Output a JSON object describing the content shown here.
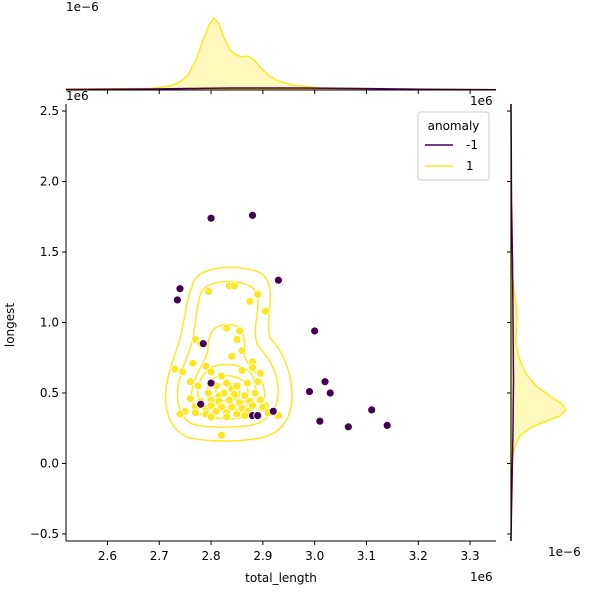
{
  "chart_data": {
    "type": "scatter",
    "xlabel": "total_length",
    "ylabel": "longest",
    "x_offset_label": "1e6",
    "y_offset_label": "1e6",
    "top_marginal_offset_label": "1e−6",
    "right_marginal_offset_label": "1e−6",
    "xlim": [
      2.52,
      3.35
    ],
    "ylim": [
      -0.55,
      2.55
    ],
    "x_ticks": [
      2.6,
      2.7,
      2.8,
      2.9,
      3.0,
      3.1,
      3.2,
      3.3
    ],
    "x_tick_labels": [
      "2.6",
      "2.7",
      "2.8",
      "2.9",
      "3.0",
      "3.1",
      "3.2",
      "3.3"
    ],
    "y_ticks": [
      -0.5,
      0.0,
      0.5,
      1.0,
      1.5,
      2.0,
      2.5
    ],
    "y_tick_labels": [
      "−0.5",
      "0.0",
      "0.5",
      "1.0",
      "1.5",
      "2.0",
      "2.5"
    ],
    "grid": false,
    "legend": {
      "title": "anomaly",
      "placement": "top-right",
      "entries": [
        {
          "label": "-1",
          "color": "#440154"
        },
        {
          "label": "1",
          "color": "#fde725"
        }
      ]
    },
    "series": [
      {
        "name": "-1",
        "color": "#440154",
        "points": [
          [
            2.8,
            1.74
          ],
          [
            2.88,
            1.76
          ],
          [
            2.74,
            1.24
          ],
          [
            2.735,
            1.16
          ],
          [
            2.93,
            1.3
          ],
          [
            3.0,
            0.94
          ],
          [
            2.785,
            0.85
          ],
          [
            2.8,
            0.57
          ],
          [
            2.99,
            0.51
          ],
          [
            3.02,
            0.58
          ],
          [
            3.03,
            0.5
          ],
          [
            2.78,
            0.42
          ],
          [
            2.88,
            0.34
          ],
          [
            2.89,
            0.34
          ],
          [
            2.92,
            0.37
          ],
          [
            3.01,
            0.3
          ],
          [
            3.065,
            0.26
          ],
          [
            3.11,
            0.38
          ],
          [
            3.14,
            0.27
          ]
        ]
      },
      {
        "name": "1",
        "color": "#fde725",
        "points": [
          [
            2.795,
            1.22
          ],
          [
            2.835,
            1.26
          ],
          [
            2.845,
            1.26
          ],
          [
            2.89,
            1.2
          ],
          [
            2.875,
            1.15
          ],
          [
            2.905,
            1.08
          ],
          [
            2.83,
            0.96
          ],
          [
            2.855,
            0.94
          ],
          [
            2.77,
            0.88
          ],
          [
            2.78,
            0.85
          ],
          [
            2.85,
            0.88
          ],
          [
            2.86,
            0.8
          ],
          [
            2.88,
            0.72
          ],
          [
            2.84,
            0.76
          ],
          [
            2.73,
            0.67
          ],
          [
            2.745,
            0.65
          ],
          [
            2.765,
            0.71
          ],
          [
            2.79,
            0.69
          ],
          [
            2.8,
            0.65
          ],
          [
            2.82,
            0.62
          ],
          [
            2.86,
            0.66
          ],
          [
            2.88,
            0.68
          ],
          [
            2.895,
            0.64
          ],
          [
            2.76,
            0.58
          ],
          [
            2.775,
            0.55
          ],
          [
            2.81,
            0.55
          ],
          [
            2.83,
            0.57
          ],
          [
            2.84,
            0.53
          ],
          [
            2.85,
            0.55
          ],
          [
            2.87,
            0.57
          ],
          [
            2.89,
            0.58
          ],
          [
            2.795,
            0.5
          ],
          [
            2.815,
            0.48
          ],
          [
            2.825,
            0.5
          ],
          [
            2.845,
            0.49
          ],
          [
            2.865,
            0.48
          ],
          [
            2.885,
            0.5
          ],
          [
            2.76,
            0.46
          ],
          [
            2.78,
            0.44
          ],
          [
            2.8,
            0.45
          ],
          [
            2.815,
            0.44
          ],
          [
            2.835,
            0.45
          ],
          [
            2.855,
            0.43
          ],
          [
            2.875,
            0.44
          ],
          [
            2.895,
            0.45
          ],
          [
            2.905,
            0.41
          ],
          [
            2.77,
            0.4
          ],
          [
            2.79,
            0.39
          ],
          [
            2.8,
            0.41
          ],
          [
            2.82,
            0.4
          ],
          [
            2.84,
            0.4
          ],
          [
            2.86,
            0.39
          ],
          [
            2.88,
            0.41
          ],
          [
            2.9,
            0.4
          ],
          [
            2.75,
            0.37
          ],
          [
            2.77,
            0.36
          ],
          [
            2.79,
            0.35
          ],
          [
            2.81,
            0.37
          ],
          [
            2.83,
            0.36
          ],
          [
            2.85,
            0.35
          ],
          [
            2.87,
            0.37
          ],
          [
            2.91,
            0.36
          ],
          [
            2.93,
            0.34
          ],
          [
            2.8,
            0.33
          ],
          [
            2.83,
            0.33
          ],
          [
            2.865,
            0.34
          ],
          [
            2.82,
            0.2
          ],
          [
            2.74,
            0.35
          ]
        ]
      }
    ]
  }
}
